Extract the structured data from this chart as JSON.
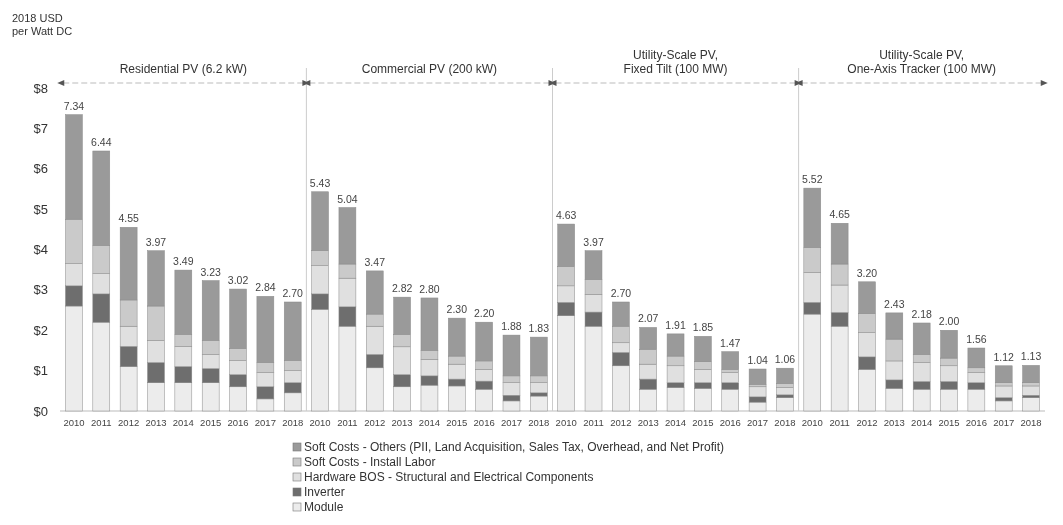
{
  "chart_data": {
    "type": "bar",
    "stacked": true,
    "ylabel": "2018 USD\nper Watt DC",
    "annotations": [
      "Residential PV (6.2 kW)",
      "Commercial PV (200 kW)",
      "Utility-Scale PV,\nFixed Tilt (100 MW)",
      "Utility-Scale PV,\nOne-Axis Tracker (100 MW)"
    ],
    "categories": [
      "2010",
      "2011",
      "2012",
      "2013",
      "2014",
      "2015",
      "2016",
      "2017",
      "2018",
      "2010",
      "2011",
      "2012",
      "2013",
      "2014",
      "2015",
      "2016",
      "2017",
      "2018",
      "2010",
      "2011",
      "2012",
      "2013",
      "2014",
      "2015",
      "2016",
      "2017",
      "2018",
      "2010",
      "2011",
      "2012",
      "2013",
      "2014",
      "2015",
      "2016",
      "2017",
      "2018"
    ],
    "ylim": [
      0,
      8
    ],
    "yticks": [
      {
        "value": 0,
        "label": "$0"
      },
      {
        "value": 1,
        "label": "$1"
      },
      {
        "value": 2,
        "label": "$2"
      },
      {
        "value": 3,
        "label": "$3"
      },
      {
        "value": 4,
        "label": "$4"
      },
      {
        "value": 5,
        "label": "$5"
      },
      {
        "value": 6,
        "label": "$6"
      },
      {
        "value": 7,
        "label": "$7"
      },
      {
        "value": 8,
        "label": "$8"
      }
    ],
    "legend": "bottom",
    "series": [
      {
        "name": "Module",
        "color": "#ececec",
        "values": [
          2.6,
          2.2,
          1.1,
          0.7,
          0.7,
          0.7,
          0.6,
          0.3,
          0.45,
          2.52,
          2.1,
          1.07,
          0.6,
          0.64,
          0.62,
          0.54,
          0.25,
          0.37,
          2.36,
          2.1,
          1.12,
          0.54,
          0.58,
          0.56,
          0.54,
          0.22,
          0.33,
          2.4,
          2.1,
          1.03,
          0.56,
          0.54,
          0.54,
          0.54,
          0.25,
          0.33
        ]
      },
      {
        "name": "Inverter",
        "color": "#6e6e6e",
        "values": [
          0.5,
          0.7,
          0.5,
          0.5,
          0.4,
          0.35,
          0.3,
          0.3,
          0.25,
          0.38,
          0.48,
          0.33,
          0.3,
          0.23,
          0.17,
          0.2,
          0.14,
          0.08,
          0.33,
          0.35,
          0.33,
          0.25,
          0.12,
          0.14,
          0.16,
          0.13,
          0.07,
          0.29,
          0.34,
          0.31,
          0.21,
          0.19,
          0.19,
          0.16,
          0.08,
          0.06
        ]
      },
      {
        "name": "Hardware BOS - Structural and Electrical Components",
        "color": "#e0e0e0",
        "values": [
          0.55,
          0.5,
          0.5,
          0.55,
          0.5,
          0.35,
          0.35,
          0.35,
          0.3,
          0.7,
          0.71,
          0.7,
          0.69,
          0.41,
          0.37,
          0.29,
          0.31,
          0.25,
          0.41,
          0.44,
          0.24,
          0.37,
          0.42,
          0.33,
          0.25,
          0.25,
          0.18,
          0.74,
          0.68,
          0.6,
          0.47,
          0.47,
          0.39,
          0.25,
          0.29,
          0.23
        ]
      },
      {
        "name": "Soft Costs - Install Labor",
        "color": "#cacaca",
        "values": [
          1.1,
          0.7,
          0.65,
          0.85,
          0.3,
          0.35,
          0.3,
          0.25,
          0.25,
          0.37,
          0.35,
          0.3,
          0.31,
          0.22,
          0.2,
          0.21,
          0.17,
          0.17,
          0.48,
          0.37,
          0.41,
          0.37,
          0.24,
          0.19,
          0.08,
          0.06,
          0.1,
          0.62,
          0.52,
          0.47,
          0.54,
          0.2,
          0.19,
          0.12,
          0.08,
          0.08
        ]
      },
      {
        "name": "Soft Costs - Others (PII, Land Acquisition, Sales Tax, Overhead, and Net Profit)",
        "color": "#9a9a9a",
        "values": [
          2.59,
          2.34,
          1.8,
          1.37,
          1.59,
          1.48,
          1.47,
          1.64,
          1.45,
          1.46,
          1.4,
          1.07,
          0.92,
          1.3,
          0.94,
          0.96,
          1.01,
          0.96,
          1.05,
          0.71,
          0.6,
          0.54,
          0.55,
          0.63,
          0.44,
          0.38,
          0.38,
          1.47,
          1.01,
          0.79,
          0.65,
          0.78,
          0.69,
          0.49,
          0.42,
          0.43
        ]
      }
    ],
    "totals": [
      "7.34",
      "6.44",
      "4.55",
      "3.97",
      "3.49",
      "3.23",
      "3.02",
      "2.84",
      "2.70",
      "5.43",
      "5.04",
      "3.47",
      "2.82",
      "2.80",
      "2.30",
      "2.20",
      "1.88",
      "1.83",
      "4.63",
      "3.97",
      "2.70",
      "2.07",
      "1.91",
      "1.85",
      "1.47",
      "1.04",
      "1.06",
      "5.52",
      "4.65",
      "3.20",
      "2.43",
      "2.18",
      "2.00",
      "1.56",
      "1.12",
      "1.13"
    ]
  }
}
